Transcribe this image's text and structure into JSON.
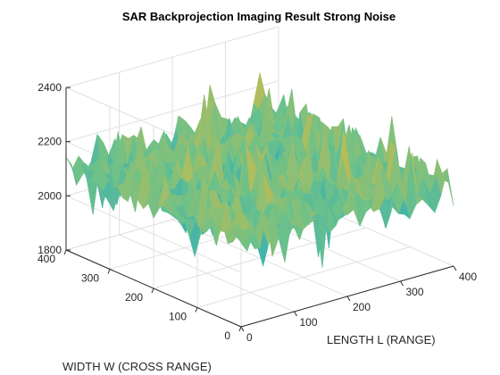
{
  "chart_data": {
    "type": "surface",
    "title": "SAR Backprojection Imaging Result Strong Noise",
    "xlabel": "LENGTH L (RANGE)",
    "ylabel": "WIDTH W (CROSS RANGE)",
    "zlabel": "",
    "xlim": [
      0,
      400
    ],
    "ylim": [
      0,
      400
    ],
    "zlim": [
      1800,
      2400
    ],
    "xticks": [
      "0",
      "100",
      "200",
      "300",
      "400"
    ],
    "yticks": [
      "0",
      "100",
      "200",
      "300",
      "400"
    ],
    "zticks": [
      "1800",
      "2000",
      "2200",
      "2400"
    ],
    "grid": true,
    "colormap": "parula",
    "surface_summary": {
      "mean_level": 2100,
      "noise_range": [
        1870,
        2370
      ],
      "description_of_shape": "noisy plane centered around z≈2100"
    },
    "colors": {
      "low": "#0072bd",
      "mid_low": "#1fa7c9",
      "mid": "#6cc18a",
      "mid_high": "#d4bb46",
      "high": "#f5c62b",
      "axis": "#262626",
      "grid": "#e0e0e0"
    }
  }
}
